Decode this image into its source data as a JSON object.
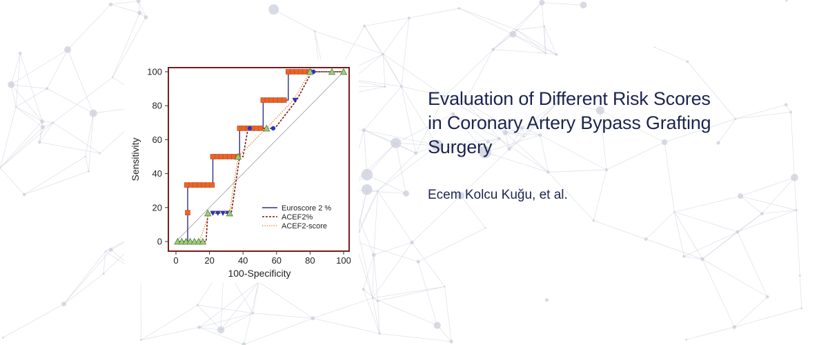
{
  "article": {
    "title_lines": [
      "Evaluation of Different Risk Scores",
      "in Coronary Artery Bypass Grafting",
      "Surgery"
    ],
    "authors": "Ecem Kolcu Kuğu, et al."
  },
  "colors": {
    "title_text": "#1c2450",
    "background_network": "#c9ccd9",
    "euroscore": "#2e2f80",
    "acef2": "#7a1414",
    "acef2_score": "#e08a2a",
    "marker_orange": "#e8652a",
    "marker_blue": "#2636c8",
    "marker_green": "#9ad07a",
    "chart_frame": "#7a1c1c"
  },
  "chart_data": {
    "type": "line",
    "xlabel": "100-Specificity",
    "ylabel": "Sensitivity",
    "xlim": [
      0,
      100
    ],
    "ylim": [
      0,
      100
    ],
    "x_ticks": [
      "0",
      "20",
      "40",
      "60",
      "80",
      "100"
    ],
    "y_ticks": [
      "0",
      "20",
      "40",
      "60",
      "80",
      "100"
    ],
    "legend_position": "bottom-right",
    "diagonal_reference": true,
    "series": [
      {
        "name": "Euroscore 2 %",
        "style": "solid",
        "color": "#2e2f80",
        "x": [
          0,
          7,
          7,
          7,
          7,
          22,
          22,
          38,
          38,
          52,
          52,
          67,
          67,
          100
        ],
        "y": [
          0,
          0,
          17,
          17,
          33.3,
          33.3,
          50,
          50,
          66.7,
          66.7,
          83.3,
          83.3,
          100,
          100
        ]
      },
      {
        "name": "ACEF2%",
        "style": "dashed",
        "color": "#7a1414",
        "x": [
          0,
          18,
          19,
          32,
          33,
          38,
          40,
          43,
          59,
          72,
          81,
          100
        ],
        "y": [
          0,
          0,
          16.7,
          16.7,
          16.7,
          50,
          50,
          66.7,
          66.7,
          83.3,
          100,
          100
        ]
      },
      {
        "name": "ACEF2-score",
        "style": "dotted",
        "color": "#e08a2a",
        "x": [
          0,
          14,
          20,
          32,
          37,
          54,
          70,
          80,
          100
        ],
        "y": [
          0,
          0,
          16.7,
          16.7,
          50,
          66.7,
          83.3,
          100,
          100
        ]
      }
    ],
    "markers": {
      "orange_squares": [
        {
          "x": 7,
          "y": 17
        },
        {
          "x": 6.5,
          "y": 33.3
        },
        {
          "x": 9,
          "y": 33.3
        },
        {
          "x": 11.5,
          "y": 33.3
        },
        {
          "x": 14,
          "y": 33.3
        },
        {
          "x": 16.5,
          "y": 33.3
        },
        {
          "x": 19,
          "y": 33.3
        },
        {
          "x": 21.5,
          "y": 33.3
        },
        {
          "x": 22,
          "y": 50
        },
        {
          "x": 24.5,
          "y": 50
        },
        {
          "x": 27,
          "y": 50
        },
        {
          "x": 29.5,
          "y": 50
        },
        {
          "x": 32,
          "y": 50
        },
        {
          "x": 34.5,
          "y": 50
        },
        {
          "x": 37,
          "y": 50
        },
        {
          "x": 38,
          "y": 66.7
        },
        {
          "x": 40.5,
          "y": 66.7
        },
        {
          "x": 43,
          "y": 66.7
        },
        {
          "x": 45.5,
          "y": 66.7
        },
        {
          "x": 48,
          "y": 66.7
        },
        {
          "x": 50.5,
          "y": 66.7
        },
        {
          "x": 52,
          "y": 83.3
        },
        {
          "x": 54.5,
          "y": 83.3
        },
        {
          "x": 57,
          "y": 83.3
        },
        {
          "x": 59.5,
          "y": 83.3
        },
        {
          "x": 62,
          "y": 83.3
        },
        {
          "x": 64.5,
          "y": 83.3
        },
        {
          "x": 67,
          "y": 100
        },
        {
          "x": 69.5,
          "y": 100
        },
        {
          "x": 72,
          "y": 100
        },
        {
          "x": 74.5,
          "y": 100
        },
        {
          "x": 77,
          "y": 100
        },
        {
          "x": 79.5,
          "y": 100
        }
      ],
      "blue_dots": [
        {
          "x": 44,
          "y": 66.7
        },
        {
          "x": 58,
          "y": 66.7
        },
        {
          "x": 82,
          "y": 100
        }
      ],
      "blue_triangles": [
        {
          "x": 22,
          "y": 16.7
        },
        {
          "x": 25,
          "y": 16.7
        },
        {
          "x": 28,
          "y": 16.7
        },
        {
          "x": 31,
          "y": 16.7
        },
        {
          "x": 71,
          "y": 83.3
        }
      ],
      "green_triangles": [
        {
          "x": 1,
          "y": 0
        },
        {
          "x": 3.5,
          "y": 0
        },
        {
          "x": 6,
          "y": 0
        },
        {
          "x": 8.5,
          "y": 0
        },
        {
          "x": 11,
          "y": 0
        },
        {
          "x": 13.5,
          "y": 0
        },
        {
          "x": 16,
          "y": 0
        },
        {
          "x": 19,
          "y": 16.7
        },
        {
          "x": 32,
          "y": 16.7
        },
        {
          "x": 37,
          "y": 50
        },
        {
          "x": 54,
          "y": 66.7
        },
        {
          "x": 80,
          "y": 100
        },
        {
          "x": 93,
          "y": 100
        },
        {
          "x": 100,
          "y": 100
        }
      ]
    }
  }
}
